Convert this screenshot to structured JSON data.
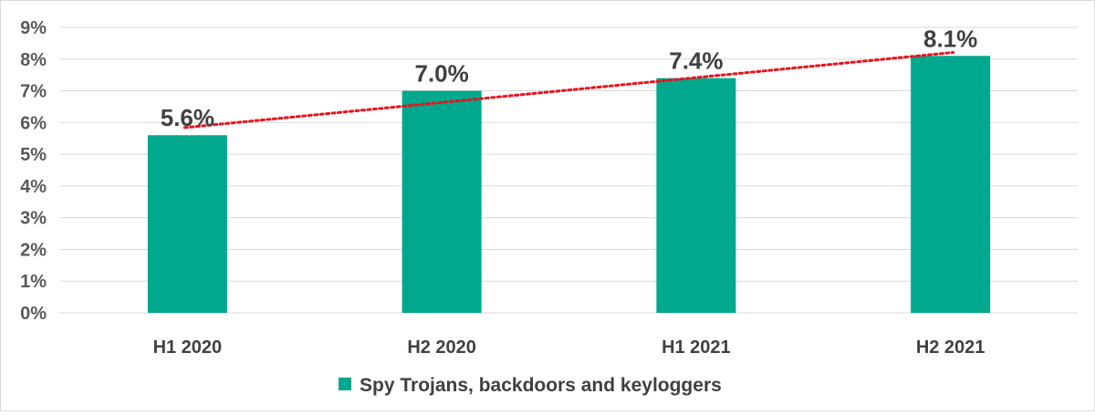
{
  "chart_data": {
    "type": "bar",
    "categories": [
      "H1 2020",
      "H2 2020",
      "H1 2021",
      "H2 2021"
    ],
    "series": [
      {
        "name": "Spy Trojans, backdoors and keyloggers",
        "values": [
          5.6,
          7.0,
          7.4,
          8.1
        ],
        "data_labels": [
          "5.6%",
          "7.0%",
          "7.4%",
          "8.1%"
        ],
        "color": "#00A88E"
      }
    ],
    "ylim": [
      0,
      9
    ],
    "y_ticks": [
      0,
      1,
      2,
      3,
      4,
      5,
      6,
      7,
      8,
      9
    ],
    "y_tick_labels": [
      "0%",
      "1%",
      "2%",
      "3%",
      "4%",
      "5%",
      "6%",
      "7%",
      "8%",
      "9%"
    ],
    "trendline": {
      "type": "linear",
      "style": "dotted",
      "color": "#E8141E"
    },
    "grid": true,
    "grid_color": "#d9d9d9",
    "legend": "bottom",
    "title": "",
    "xlabel": "",
    "ylabel": ""
  }
}
